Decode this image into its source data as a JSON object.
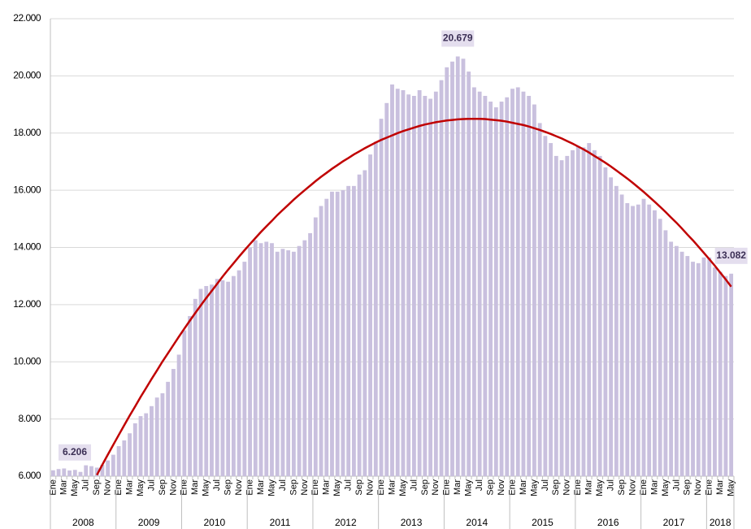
{
  "chart_data": {
    "type": "bar",
    "categories": [
      "Ene",
      null,
      "Mar",
      null,
      "May",
      null,
      "Jul",
      null,
      "Sep",
      null,
      "Nov",
      null,
      "Ene",
      null,
      "Mar",
      null,
      "May",
      null,
      "Jul",
      null,
      "Sep",
      null,
      "Nov",
      null,
      "Ene",
      null,
      "Mar",
      null,
      "May",
      null,
      "Jul",
      null,
      "Sep",
      null,
      "Nov",
      null,
      "Ene",
      null,
      "Mar",
      null,
      "May",
      null,
      "Jul",
      null,
      "Sep",
      null,
      "Nov",
      null,
      "Ene",
      null,
      "Mar",
      null,
      "May",
      null,
      "Jul",
      null,
      "Sep",
      null,
      "Nov",
      null,
      "Ene",
      null,
      "Mar",
      null,
      "May",
      null,
      "Jul",
      null,
      "Sep",
      null,
      "Nov",
      null,
      "Ene",
      null,
      "Mar",
      null,
      "May",
      null,
      "Jul",
      null,
      "Sep",
      null,
      "Nov",
      null,
      "Ene",
      null,
      "Mar",
      null,
      "May",
      null,
      "Jul",
      null,
      "Sep",
      null,
      "Nov",
      null,
      "Ene",
      null,
      "Mar",
      null,
      "May",
      null,
      "Jul",
      null,
      "Sep",
      null,
      "Nov",
      null,
      "Ene",
      null,
      "Mar",
      null,
      "May",
      null,
      "Jul",
      null,
      "Sep",
      null,
      "Nov",
      null,
      "Ene",
      null,
      "Mar",
      null,
      "May"
    ],
    "year_groups": [
      {
        "label": "2008",
        "span": 12
      },
      {
        "label": "2009",
        "span": 12
      },
      {
        "label": "2010",
        "span": 12
      },
      {
        "label": "2011",
        "span": 12
      },
      {
        "label": "2012",
        "span": 12
      },
      {
        "label": "2013",
        "span": 12
      },
      {
        "label": "2014",
        "span": 12
      },
      {
        "label": "2015",
        "span": 12
      },
      {
        "label": "2016",
        "span": 12
      },
      {
        "label": "2017",
        "span": 12
      },
      {
        "label": "2018",
        "span": 5
      }
    ],
    "series": [
      {
        "color": "#c9c0de",
        "values": [
          6206,
          6250,
          6270,
          6200,
          6220,
          6150,
          6380,
          6350,
          6300,
          6400,
          6550,
          6750,
          7050,
          7250,
          7500,
          7850,
          8100,
          8200,
          8450,
          8750,
          8900,
          9300,
          9750,
          10250,
          11100,
          11600,
          12200,
          12550,
          12650,
          12700,
          12900,
          12850,
          12800,
          13000,
          13200,
          13500,
          14000,
          14250,
          14150,
          14200,
          14150,
          13850,
          13950,
          13900,
          13850,
          14050,
          14250,
          14500,
          15050,
          15450,
          15700,
          15950,
          15950,
          16000,
          16150,
          16150,
          16550,
          16700,
          17250,
          17700,
          18500,
          19050,
          19700,
          19550,
          19500,
          19350,
          19300,
          19500,
          19300,
          19200,
          19450,
          19850,
          20300,
          20500,
          20679,
          20600,
          20150,
          19600,
          19450,
          19300,
          19100,
          18900,
          19100,
          19250,
          19550,
          19600,
          19450,
          19300,
          19000,
          18350,
          17900,
          17650,
          17200,
          17050,
          17200,
          17400,
          17550,
          17500,
          17650,
          17400,
          17200,
          16800,
          16450,
          16150,
          15850,
          15550,
          15450,
          15500,
          15700,
          15500,
          15300,
          15000,
          14600,
          14200,
          14050,
          13850,
          13700,
          13500,
          13450,
          13650,
          13650,
          13300,
          13150,
          13000,
          13082
        ],
        "value_labels": [
          "6.206",
          null,
          null,
          null,
          null,
          null,
          null,
          null,
          null,
          null,
          null,
          null,
          null,
          null,
          null,
          null,
          null,
          null,
          null,
          null,
          null,
          null,
          null,
          null,
          null,
          null,
          null,
          null,
          null,
          null,
          null,
          null,
          null,
          null,
          null,
          null,
          null,
          null,
          null,
          null,
          null,
          null,
          null,
          null,
          null,
          null,
          null,
          null,
          null,
          null,
          null,
          null,
          null,
          null,
          null,
          null,
          null,
          null,
          null,
          null,
          null,
          null,
          null,
          null,
          null,
          null,
          null,
          null,
          null,
          null,
          null,
          null,
          null,
          null,
          "20.679",
          null,
          null,
          null,
          null,
          null,
          null,
          null,
          null,
          null,
          null,
          null,
          null,
          null,
          null,
          null,
          null,
          null,
          null,
          null,
          null,
          null,
          null,
          null,
          null,
          null,
          null,
          null,
          null,
          null,
          null,
          null,
          null,
          null,
          null,
          null,
          null,
          null,
          null,
          null,
          null,
          null,
          null,
          null,
          null,
          null,
          null,
          null,
          null,
          null,
          "13.082"
        ]
      }
    ],
    "trend": {
      "color": "#c00000",
      "values": [
        null,
        null,
        null,
        null,
        null,
        null,
        null,
        null,
        6040,
        6400,
        6750,
        7100,
        7440,
        7780,
        8120,
        8440,
        8770,
        9080,
        9400,
        9700,
        10010,
        10300,
        10590,
        10880,
        11160,
        11440,
        11710,
        11970,
        12230,
        12480,
        12730,
        12980,
        13220,
        13450,
        13680,
        13900,
        14120,
        14330,
        14540,
        14740,
        14930,
        15130,
        15310,
        15490,
        15670,
        15840,
        16000,
        16160,
        16320,
        16470,
        16610,
        16750,
        16880,
        17010,
        17130,
        17250,
        17360,
        17470,
        17570,
        17670,
        17760,
        17840,
        17920,
        18000,
        18070,
        18130,
        18190,
        18250,
        18300,
        18340,
        18380,
        18410,
        18440,
        18460,
        18480,
        18490,
        18500,
        18500,
        18500,
        18490,
        18470,
        18450,
        18430,
        18400,
        18360,
        18320,
        18280,
        18230,
        18170,
        18110,
        18040,
        17970,
        17890,
        17810,
        17720,
        17630,
        17530,
        17430,
        17320,
        17200,
        17080,
        16960,
        16830,
        16690,
        16550,
        16410,
        16260,
        16100,
        15940,
        15770,
        15600,
        15420,
        15240,
        15050,
        14860,
        14660,
        14450,
        14250,
        14030,
        13810,
        13590,
        13360,
        13120,
        12880,
        12630
      ]
    },
    "ylim": [
      6000,
      22000
    ],
    "yticks": [
      {
        "value": 6000,
        "label": "6.000"
      },
      {
        "value": 8000,
        "label": "8.000"
      },
      {
        "value": 10000,
        "label": "10.000"
      },
      {
        "value": 12000,
        "label": "12.000"
      },
      {
        "value": 14000,
        "label": "14.000"
      },
      {
        "value": 16000,
        "label": "16.000"
      },
      {
        "value": 18000,
        "label": "18.000"
      },
      {
        "value": 20000,
        "label": "20.000"
      },
      {
        "value": 22000,
        "label": "22.000"
      }
    ],
    "grid": true
  }
}
